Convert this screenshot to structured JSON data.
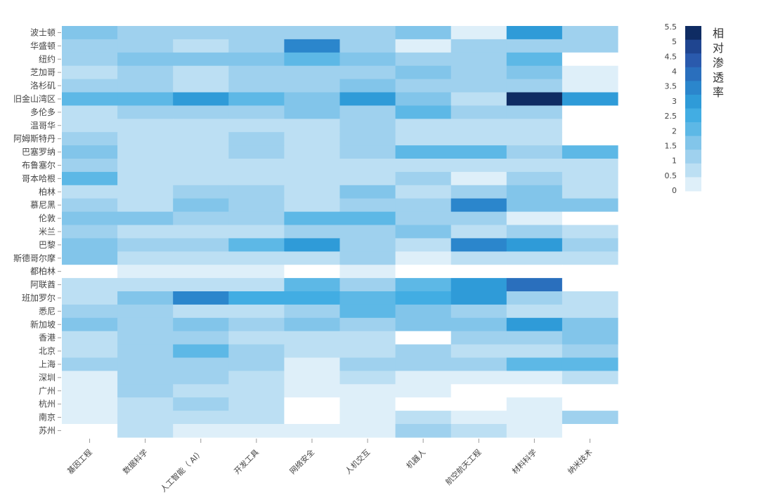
{
  "chart_data": {
    "type": "heatmap",
    "title": "",
    "xlabel": "",
    "ylabel": "",
    "legend_title": "相对渗透率",
    "legend_position": "right",
    "color_range": [
      0,
      5.5
    ],
    "legend_ticks": [
      "5.5",
      "5",
      "4.5",
      "4",
      "3.5",
      "3",
      "2.5",
      "2",
      "1.5",
      "1",
      "0.5",
      "0"
    ],
    "colors": [
      "#deeff9",
      "#bcdff3",
      "#9fd1ee",
      "#82c5ea",
      "#5db8e6",
      "#42ade3",
      "#2f9bd8",
      "#2b86cc",
      "#2a6fbd",
      "#2a5aad",
      "#1f4590",
      "#0f2c63"
    ],
    "x_categories": [
      "基因工程",
      "数据科学",
      "人工智能（ AI）",
      "开发工具",
      "网络安全",
      "人机交互",
      "机器人",
      "航空航天工程",
      "材料科学",
      "纳米技术"
    ],
    "y_categories": [
      "波士顿",
      "华盛顿",
      "纽约",
      "芝加哥",
      "洛杉矶",
      "旧金山湾区",
      "多伦多",
      "温哥华",
      "阿姆斯特丹",
      "巴塞罗纳",
      "布鲁塞尔",
      "哥本哈根",
      "柏林",
      "慕尼黑",
      "伦敦",
      "米兰",
      "巴黎",
      "斯德哥尔摩",
      "都柏林",
      "阿联酋",
      "班加罗尔",
      "悉尼",
      "新加坡",
      "香港",
      "北京",
      "上海",
      "深圳",
      "广州",
      "杭州",
      "南京",
      "苏州"
    ],
    "values": [
      [
        1.5,
        1.0,
        1.0,
        1.0,
        1.0,
        1.0,
        1.5,
        0.2,
        3.2,
        0.8
      ],
      [
        1.0,
        1.0,
        0.7,
        1.0,
        3.5,
        1.0,
        0.2,
        0.8,
        1.0,
        1.0
      ],
      [
        1.0,
        1.5,
        1.5,
        1.5,
        2.0,
        1.5,
        1.0,
        1.0,
        2.0,
        0.0
      ],
      [
        0.7,
        1.0,
        0.7,
        1.0,
        1.0,
        1.0,
        1.5,
        0.8,
        1.5,
        0.2
      ],
      [
        1.0,
        1.0,
        0.7,
        1.0,
        1.0,
        1.5,
        1.0,
        1.0,
        1.0,
        0.2
      ],
      [
        2.0,
        2.0,
        3.0,
        2.0,
        1.5,
        3.0,
        1.5,
        0.7,
        5.5,
        3.0
      ],
      [
        0.7,
        1.0,
        1.0,
        1.0,
        1.5,
        1.0,
        2.0,
        1.0,
        0.8,
        0.0
      ],
      [
        0.7,
        0.7,
        0.7,
        0.7,
        0.7,
        1.0,
        0.7,
        0.7,
        0.7,
        0.0
      ],
      [
        1.0,
        0.7,
        0.7,
        1.0,
        0.7,
        1.0,
        0.7,
        0.7,
        0.3,
        0.0
      ],
      [
        1.5,
        0.7,
        0.7,
        1.0,
        0.7,
        1.0,
        2.0,
        2.0,
        0.8,
        2.0
      ],
      [
        1.0,
        0.7,
        0.7,
        0.7,
        0.7,
        0.7,
        0.7,
        0.7,
        0.7,
        0.7
      ],
      [
        2.0,
        0.7,
        0.7,
        0.7,
        0.7,
        0.7,
        1.0,
        0.2,
        1.0,
        0.7
      ],
      [
        0.7,
        0.7,
        1.0,
        1.0,
        0.7,
        1.5,
        0.7,
        1.0,
        1.5,
        0.7
      ],
      [
        1.0,
        0.7,
        1.5,
        1.0,
        0.7,
        1.0,
        1.0,
        3.5,
        1.5,
        1.5
      ],
      [
        1.5,
        1.5,
        1.0,
        1.0,
        2.0,
        2.0,
        1.0,
        1.0,
        0.2,
        0.0
      ],
      [
        1.0,
        0.7,
        0.7,
        0.7,
        1.0,
        1.0,
        1.5,
        0.7,
        1.0,
        0.7
      ],
      [
        1.5,
        1.0,
        1.0,
        2.0,
        3.0,
        1.0,
        0.7,
        3.5,
        3.0,
        1.0
      ],
      [
        1.5,
        0.7,
        0.7,
        0.7,
        0.7,
        1.0,
        0.2,
        0.7,
        0.7,
        0.7
      ],
      [
        0.0,
        0.2,
        0.2,
        0.2,
        0.0,
        0.2,
        0.0,
        0.0,
        0.0,
        0.0
      ],
      [
        0.7,
        0.7,
        0.7,
        0.7,
        2.0,
        1.0,
        2.0,
        3.0,
        4.0,
        0.0
      ],
      [
        0.7,
        1.5,
        3.5,
        2.5,
        2.5,
        2.0,
        2.5,
        3.0,
        1.0,
        0.7
      ],
      [
        1.0,
        1.0,
        0.7,
        0.7,
        1.0,
        2.0,
        1.5,
        1.0,
        0.3,
        0.7
      ],
      [
        1.5,
        1.0,
        1.5,
        1.0,
        1.5,
        1.0,
        1.5,
        1.5,
        3.0,
        1.5
      ],
      [
        0.7,
        1.0,
        1.0,
        0.7,
        0.7,
        0.7,
        0.0,
        1.0,
        1.0,
        1.5
      ],
      [
        0.7,
        1.0,
        2.0,
        1.0,
        0.7,
        0.7,
        0.8,
        0.3,
        0.7,
        1.0
      ],
      [
        1.0,
        1.0,
        1.0,
        1.0,
        0.2,
        1.0,
        1.0,
        1.0,
        2.0,
        2.0
      ],
      [
        0.2,
        1.0,
        1.0,
        0.7,
        0.2,
        0.7,
        0.2,
        0.2,
        0.2,
        0.7
      ],
      [
        0.2,
        1.0,
        0.7,
        0.7,
        0.2,
        0.2,
        0.2,
        0.0,
        0.0,
        0.0
      ],
      [
        0.2,
        0.7,
        1.0,
        0.7,
        0.0,
        0.2,
        0.0,
        0.0,
        0.2,
        0.0
      ],
      [
        0.2,
        0.7,
        0.7,
        0.7,
        0.0,
        0.2,
        0.7,
        0.2,
        0.2,
        1.0
      ],
      [
        0.0,
        0.7,
        0.2,
        0.2,
        0.2,
        0.2,
        1.0,
        0.7,
        0.2,
        0.0
      ]
    ]
  }
}
